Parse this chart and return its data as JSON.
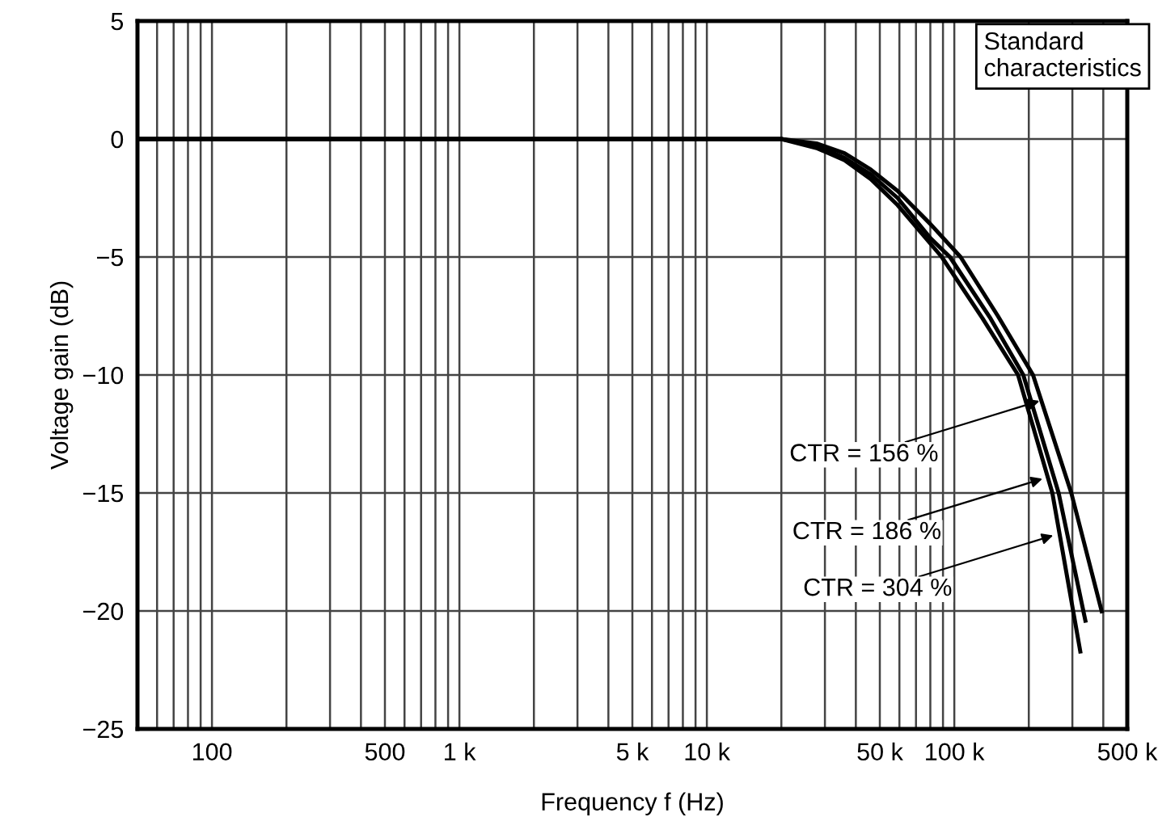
{
  "chart_data": {
    "type": "line",
    "xlabel": "Frequency f (Hz)",
    "ylabel": "Voltage gain (dB)",
    "log": "x",
    "grid": true,
    "line_style": "solid",
    "xlim": [
      50,
      500000
    ],
    "ylim": [
      -25,
      5
    ],
    "xticks": [
      {
        "value": 50,
        "label": null
      },
      {
        "value": 60,
        "label": null
      },
      {
        "value": 70,
        "label": null
      },
      {
        "value": 80,
        "label": null
      },
      {
        "value": 90,
        "label": null
      },
      {
        "value": 100,
        "label": "100"
      },
      {
        "value": 200,
        "label": null
      },
      {
        "value": 300,
        "label": null
      },
      {
        "value": 400,
        "label": null
      },
      {
        "value": 500,
        "label": "500"
      },
      {
        "value": 600,
        "label": null
      },
      {
        "value": 700,
        "label": null
      },
      {
        "value": 800,
        "label": null
      },
      {
        "value": 900,
        "label": null
      },
      {
        "value": 1000,
        "label": "1 k"
      },
      {
        "value": 2000,
        "label": null
      },
      {
        "value": 3000,
        "label": null
      },
      {
        "value": 4000,
        "label": null
      },
      {
        "value": 5000,
        "label": "5 k"
      },
      {
        "value": 6000,
        "label": null
      },
      {
        "value": 7000,
        "label": null
      },
      {
        "value": 8000,
        "label": null
      },
      {
        "value": 9000,
        "label": null
      },
      {
        "value": 10000,
        "label": "10 k"
      },
      {
        "value": 20000,
        "label": null
      },
      {
        "value": 30000,
        "label": null
      },
      {
        "value": 40000,
        "label": null
      },
      {
        "value": 50000,
        "label": "50 k"
      },
      {
        "value": 60000,
        "label": null
      },
      {
        "value": 70000,
        "label": null
      },
      {
        "value": 80000,
        "label": null
      },
      {
        "value": 90000,
        "label": null
      },
      {
        "value": 100000,
        "label": "100 k"
      },
      {
        "value": 200000,
        "label": null
      },
      {
        "value": 300000,
        "label": null
      },
      {
        "value": 400000,
        "label": null
      },
      {
        "value": 500000,
        "label": "500 k"
      }
    ],
    "yticks": [
      5,
      0,
      {
        "value": -5,
        "label": "−5"
      },
      {
        "value": -10,
        "label": "−10"
      },
      {
        "value": -15,
        "label": "−15"
      },
      {
        "value": -20,
        "label": "−20"
      },
      {
        "value": -25,
        "label": "−25"
      }
    ],
    "series": [
      {
        "color": "#000000",
        "x": [
          50,
          20000,
          28000,
          36000,
          46000,
          59000,
          80000,
          106000,
          150000,
          208000,
          297000,
          396000
        ],
        "values": [
          0,
          0,
          -0.2,
          -0.6,
          -1.3,
          -2.2,
          -3.6,
          -5,
          -7.5,
          -10,
          -15,
          -20.1
        ]
      },
      {
        "color": "#000000",
        "x": [
          50,
          20000,
          28000,
          36000,
          46000,
          59000,
          80000,
          96000,
          140000,
          190000,
          264000,
          340000
        ],
        "values": [
          0,
          0,
          -0.3,
          -0.8,
          -1.5,
          -2.5,
          -4.2,
          -5,
          -7.6,
          -10,
          -15,
          -20.5
        ]
      },
      {
        "color": "#000000",
        "x": [
          50,
          20000,
          28000,
          36000,
          46000,
          59000,
          89000,
          130000,
          181000,
          249000,
          324000
        ],
        "values": [
          0,
          0,
          -0.4,
          -0.9,
          -1.7,
          -2.8,
          -5,
          -7.6,
          -10,
          -15,
          -21.8
        ]
      }
    ],
    "annotations": [
      "Standard\ncharacteristics",
      {
        "text": "CTR = 156 %",
        "x": 221000,
        "y": -11.1
      },
      {
        "text": "CTR = 186 %",
        "x": 227000,
        "y": -14.4
      },
      {
        "text": "CTR = 304 %",
        "x": 251000,
        "y": -16.8
      }
    ]
  }
}
